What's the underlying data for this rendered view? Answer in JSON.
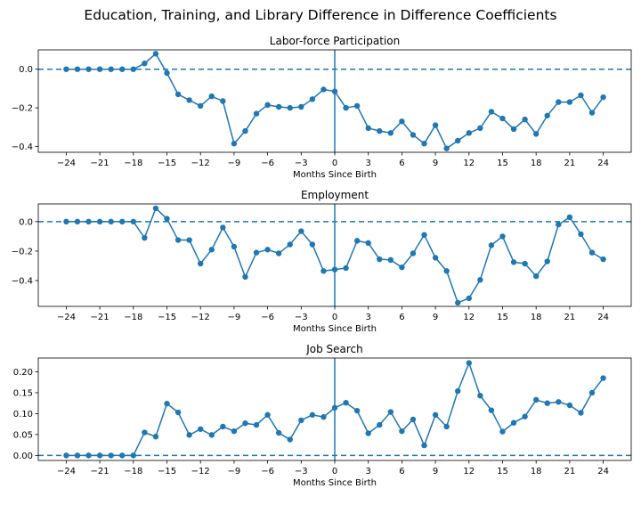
{
  "figure": {
    "title": "Education, Training, and Library Difference in Difference Coefficients"
  },
  "chart_data": [
    {
      "type": "line",
      "title": "Labor-force Participation",
      "xlabel": "Months Since Birth",
      "ylabel": "",
      "xlim": [
        -26.5,
        26.5
      ],
      "ylim": [
        -0.43,
        0.1
      ],
      "xticks": [
        -24,
        -21,
        -18,
        -15,
        -12,
        -9,
        -6,
        -3,
        0,
        3,
        6,
        9,
        12,
        15,
        18,
        21,
        24
      ],
      "xtick_labels": [
        "−24",
        "−21",
        "−18",
        "−15",
        "−12",
        "−9",
        "−6",
        "−3",
        "0",
        "3",
        "6",
        "9",
        "12",
        "15",
        "18",
        "21",
        "24"
      ],
      "yticks": [
        0.0,
        -0.2,
        -0.4
      ],
      "ytick_labels": [
        "0.0",
        "−0.2",
        "−0.4"
      ],
      "reference_lines": {
        "horizontal": 0,
        "vertical": 0
      },
      "color": "#1f77b4",
      "x": [
        -24,
        -23,
        -22,
        -21,
        -20,
        -19,
        -18,
        -17,
        -16,
        -15,
        -14,
        -13,
        -12,
        -11,
        -10,
        -9,
        -8,
        -7,
        -6,
        -5,
        -4,
        -3,
        -2,
        -1,
        0,
        1,
        2,
        3,
        4,
        5,
        6,
        7,
        8,
        9,
        10,
        11,
        12,
        13,
        14,
        15,
        16,
        17,
        18,
        19,
        20,
        21,
        22,
        23,
        24
      ],
      "values": [
        0.0,
        0.0,
        0.0,
        0.0,
        0.0,
        0.0,
        0.0,
        0.03,
        0.08,
        -0.02,
        -0.13,
        -0.16,
        -0.19,
        -0.14,
        -0.165,
        -0.385,
        -0.32,
        -0.23,
        -0.185,
        -0.195,
        -0.2,
        -0.195,
        -0.155,
        -0.105,
        -0.115,
        -0.2,
        -0.19,
        -0.305,
        -0.32,
        -0.33,
        -0.27,
        -0.34,
        -0.385,
        -0.29,
        -0.41,
        -0.37,
        -0.33,
        -0.305,
        -0.22,
        -0.255,
        -0.31,
        -0.26,
        -0.335,
        -0.24,
        -0.17,
        -0.17,
        -0.135,
        -0.225,
        -0.145
      ]
    },
    {
      "type": "line",
      "title": "Employment",
      "xlabel": "Months Since Birth",
      "ylabel": "",
      "xlim": [
        -26.5,
        26.5
      ],
      "ylim": [
        -0.575,
        0.12
      ],
      "xticks": [
        -24,
        -21,
        -18,
        -15,
        -12,
        -9,
        -6,
        -3,
        0,
        3,
        6,
        9,
        12,
        15,
        18,
        21,
        24
      ],
      "xtick_labels": [
        "−24",
        "−21",
        "−18",
        "−15",
        "−12",
        "−9",
        "−6",
        "−3",
        "0",
        "3",
        "6",
        "9",
        "12",
        "15",
        "18",
        "21",
        "24"
      ],
      "yticks": [
        0.0,
        -0.2,
        -0.4
      ],
      "ytick_labels": [
        "0.0",
        "−0.2",
        "−0.4"
      ],
      "reference_lines": {
        "horizontal": 0,
        "vertical": 0
      },
      "color": "#1f77b4",
      "x": [
        -24,
        -23,
        -22,
        -21,
        -20,
        -19,
        -18,
        -17,
        -16,
        -15,
        -14,
        -13,
        -12,
        -11,
        -10,
        -9,
        -8,
        -7,
        -6,
        -5,
        -4,
        -3,
        -2,
        -1,
        0,
        1,
        2,
        3,
        4,
        5,
        6,
        7,
        8,
        9,
        10,
        11,
        12,
        13,
        14,
        15,
        16,
        17,
        18,
        19,
        20,
        21,
        22,
        23,
        24
      ],
      "values": [
        0.0,
        0.0,
        0.0,
        0.0,
        0.0,
        0.0,
        0.0,
        -0.11,
        0.09,
        0.02,
        -0.125,
        -0.125,
        -0.285,
        -0.19,
        -0.04,
        -0.17,
        -0.375,
        -0.21,
        -0.19,
        -0.215,
        -0.155,
        -0.065,
        -0.155,
        -0.335,
        -0.325,
        -0.315,
        -0.13,
        -0.145,
        -0.255,
        -0.26,
        -0.31,
        -0.215,
        -0.09,
        -0.245,
        -0.335,
        -0.55,
        -0.52,
        -0.395,
        -0.16,
        -0.1,
        -0.275,
        -0.285,
        -0.37,
        -0.27,
        -0.02,
        0.03,
        -0.085,
        -0.21,
        -0.255
      ]
    },
    {
      "type": "line",
      "title": "Job Search",
      "xlabel": "Months Since Birth",
      "ylabel": "",
      "xlim": [
        -26.5,
        26.5
      ],
      "ylim": [
        -0.012,
        0.233
      ],
      "xticks": [
        -24,
        -21,
        -18,
        -15,
        -12,
        -9,
        -6,
        -3,
        0,
        3,
        6,
        9,
        12,
        15,
        18,
        21,
        24
      ],
      "xtick_labels": [
        "−24",
        "−21",
        "−18",
        "−15",
        "−12",
        "−9",
        "−6",
        "−3",
        "0",
        "3",
        "6",
        "9",
        "12",
        "15",
        "18",
        "21",
        "24"
      ],
      "yticks": [
        0.0,
        0.05,
        0.1,
        0.15,
        0.2
      ],
      "ytick_labels": [
        "0.00",
        "0.05",
        "0.10",
        "0.15",
        "0.20"
      ],
      "reference_lines": {
        "horizontal": 0,
        "vertical": 0
      },
      "color": "#1f77b4",
      "x": [
        -24,
        -23,
        -22,
        -21,
        -20,
        -19,
        -18,
        -17,
        -16,
        -15,
        -14,
        -13,
        -12,
        -11,
        -10,
        -9,
        -8,
        -7,
        -6,
        -5,
        -4,
        -3,
        -2,
        -1,
        0,
        1,
        2,
        3,
        4,
        5,
        6,
        7,
        8,
        9,
        10,
        11,
        12,
        13,
        14,
        15,
        16,
        17,
        18,
        19,
        20,
        21,
        22,
        23,
        24
      ],
      "values": [
        0.0,
        0.0,
        0.0,
        0.0,
        0.0,
        0.0,
        0.0,
        0.055,
        0.045,
        0.124,
        0.103,
        0.049,
        0.063,
        0.049,
        0.069,
        0.058,
        0.077,
        0.073,
        0.097,
        0.054,
        0.038,
        0.084,
        0.097,
        0.092,
        0.114,
        0.126,
        0.107,
        0.053,
        0.073,
        0.104,
        0.058,
        0.086,
        0.024,
        0.097,
        0.069,
        0.154,
        0.221,
        0.143,
        0.108,
        0.057,
        0.078,
        0.093,
        0.133,
        0.125,
        0.128,
        0.12,
        0.102,
        0.15,
        0.185
      ]
    }
  ]
}
